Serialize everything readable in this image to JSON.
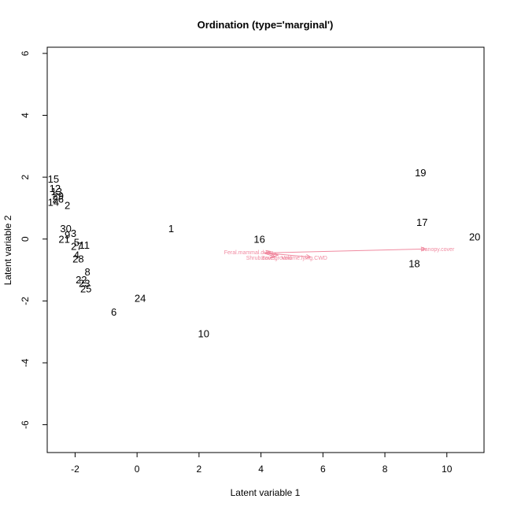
{
  "chart_data": {
    "type": "scatter",
    "title": "Ordination (type='marginal')",
    "xlabel": "Latent variable 1",
    "ylabel": "Latent variable 2",
    "xlim": [
      -2.9,
      11.2
    ],
    "ylim": [
      -6.9,
      6.2
    ],
    "xticks": [
      -2,
      0,
      2,
      4,
      6,
      8,
      10
    ],
    "yticks": [
      -6,
      -4,
      -2,
      0,
      2,
      4,
      6
    ],
    "grid": false,
    "accent_color": "#f08aa0",
    "points": [
      {
        "label": "15",
        "x": -2.7,
        "y": 1.95
      },
      {
        "label": "12",
        "x": -2.65,
        "y": 1.65
      },
      {
        "label": "13",
        "x": -2.6,
        "y": 1.55
      },
      {
        "label": "29",
        "x": -2.55,
        "y": 1.4
      },
      {
        "label": "26",
        "x": -2.55,
        "y": 1.3
      },
      {
        "label": "14",
        "x": -2.7,
        "y": 1.2
      },
      {
        "label": "2",
        "x": -2.25,
        "y": 1.1
      },
      {
        "label": "30",
        "x": -2.3,
        "y": 0.35
      },
      {
        "label": "9",
        "x": -2.25,
        "y": 0.15
      },
      {
        "label": "3",
        "x": -2.05,
        "y": 0.2
      },
      {
        "label": "21",
        "x": -2.35,
        "y": 0.0
      },
      {
        "label": "5",
        "x": -1.95,
        "y": -0.1
      },
      {
        "label": "27",
        "x": -1.95,
        "y": -0.22
      },
      {
        "label": "11",
        "x": -1.7,
        "y": -0.18
      },
      {
        "label": "4",
        "x": -1.95,
        "y": -0.5
      },
      {
        "label": "28",
        "x": -1.9,
        "y": -0.63
      },
      {
        "label": "8",
        "x": -1.6,
        "y": -1.05
      },
      {
        "label": "22",
        "x": -1.8,
        "y": -1.3
      },
      {
        "label": "23",
        "x": -1.7,
        "y": -1.42
      },
      {
        "label": "25",
        "x": -1.65,
        "y": -1.6
      },
      {
        "label": "1",
        "x": 1.1,
        "y": 0.35
      },
      {
        "label": "24",
        "x": 0.1,
        "y": -1.9
      },
      {
        "label": "6",
        "x": -0.75,
        "y": -2.35
      },
      {
        "label": "10",
        "x": 2.15,
        "y": -3.05
      },
      {
        "label": "16",
        "x": 3.95,
        "y": 0.0
      },
      {
        "label": "19",
        "x": 9.15,
        "y": 2.15
      },
      {
        "label": "17",
        "x": 9.2,
        "y": 0.55
      },
      {
        "label": "18",
        "x": 8.95,
        "y": -0.78
      },
      {
        "label": "20",
        "x": 10.9,
        "y": 0.08
      }
    ],
    "arrows": [
      {
        "label": "Canopy.cover",
        "x0": 4.1,
        "y0": -0.45,
        "x1": 9.3,
        "y1": -0.32,
        "lx": 9.7,
        "ly": -0.32
      },
      {
        "label": "Feral.mammal.dung",
        "x0": 4.1,
        "y0": -0.45,
        "x1": 4.3,
        "y1": -0.4,
        "lx": 3.6,
        "ly": -0.42
      },
      {
        "label": "Bare.ground",
        "x0": 4.1,
        "y0": -0.45,
        "x1": 4.55,
        "y1": -0.52,
        "lx": 4.5,
        "ly": -0.6
      },
      {
        "label": "Shrub.cover",
        "x0": 4.1,
        "y0": -0.45,
        "x1": 4.45,
        "y1": -0.58,
        "lx": 4.0,
        "ly": -0.6
      },
      {
        "label": "Volume.lying.CWD",
        "x0": 4.1,
        "y0": -0.45,
        "x1": 5.6,
        "y1": -0.58,
        "lx": 5.4,
        "ly": -0.6
      }
    ]
  }
}
